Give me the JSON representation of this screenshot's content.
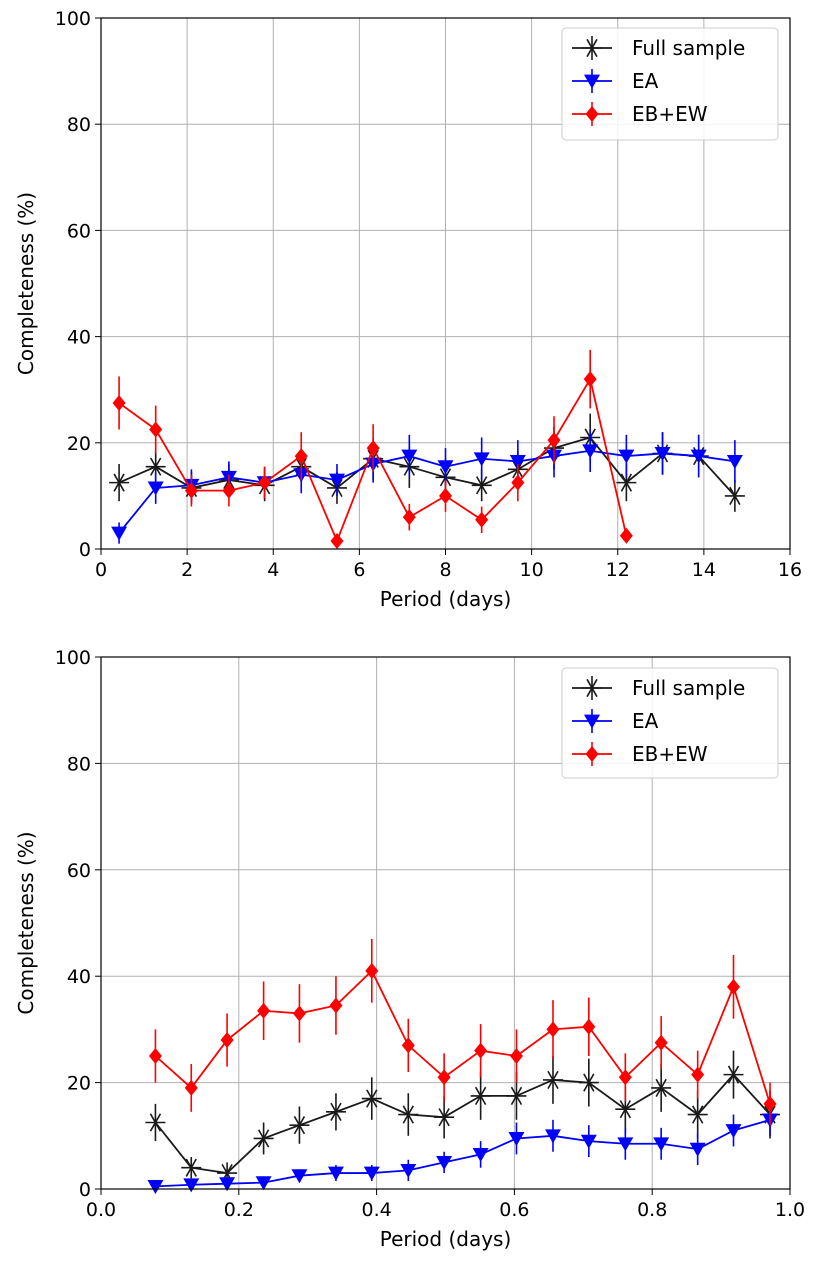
{
  "chart_data": [
    {
      "type": "line",
      "title": "",
      "xlabel": "Period (days)",
      "ylabel": "Completeness (%)",
      "xlim": [
        0,
        16
      ],
      "ylim": [
        0,
        100
      ],
      "xticks": [
        0,
        2,
        4,
        6,
        8,
        10,
        12,
        14,
        16
      ],
      "xtick_labels": [
        "0",
        "2",
        "4",
        "6",
        "8",
        "10",
        "12",
        "14",
        "16"
      ],
      "yticks": [
        0,
        20,
        40,
        60,
        80,
        100
      ],
      "ytick_labels": [
        "0",
        "20",
        "40",
        "60",
        "80",
        "100"
      ],
      "grid": true,
      "legend_position": "top-right",
      "series": [
        {
          "name": "Full sample",
          "color": "#1a1a1a",
          "marker": "asterisk",
          "x": [
            0.42,
            1.27,
            2.1,
            2.97,
            3.8,
            4.65,
            5.48,
            6.32,
            7.16,
            8.0,
            8.84,
            9.68,
            10.52,
            11.36,
            12.2,
            13.04,
            13.88,
            14.72
          ],
          "y": [
            12.5,
            15.5,
            11.5,
            13,
            12,
            15.5,
            11.5,
            17,
            15.5,
            13.5,
            12,
            15,
            19,
            21,
            12.5,
            18,
            17.5,
            10
          ],
          "err": [
            3.5,
            3,
            3,
            3,
            3,
            3,
            3,
            4,
            4,
            3.5,
            3,
            3.5,
            4,
            4.5,
            3.5,
            4,
            4,
            3
          ]
        },
        {
          "name": "EA",
          "color": "#0000ff",
          "marker": "triangle-down",
          "x": [
            0.42,
            1.27,
            2.1,
            2.97,
            3.8,
            4.65,
            5.48,
            6.32,
            7.16,
            8.0,
            8.84,
            9.68,
            10.52,
            11.36,
            12.2,
            13.04,
            13.88,
            14.72
          ],
          "y": [
            3,
            11.5,
            12,
            13.5,
            12.5,
            14,
            13,
            16,
            17.5,
            15.5,
            17,
            16.5,
            17.5,
            18.5,
            17.5,
            18,
            17.5,
            16.5
          ],
          "err": [
            2,
            3,
            3,
            3,
            3,
            3.5,
            3,
            3.5,
            4,
            3.5,
            4,
            4,
            4,
            4,
            4,
            4,
            4,
            4
          ]
        },
        {
          "name": "EB+EW",
          "color": "#ff0000",
          "marker": "diamond",
          "x": [
            0.42,
            1.27,
            2.1,
            2.97,
            3.8,
            4.65,
            5.48,
            6.32,
            7.16,
            8.0,
            8.84,
            9.68,
            10.52,
            11.36,
            12.2
          ],
          "y": [
            27.5,
            22.5,
            11,
            11,
            12.5,
            17.5,
            1.5,
            19,
            6,
            10,
            5.5,
            12.5,
            20.5,
            32,
            2.5
          ],
          "err": [
            5,
            4.5,
            3,
            3,
            3,
            4.5,
            1,
            4.5,
            2.5,
            3,
            2.5,
            3.5,
            4.5,
            5.5,
            1
          ]
        }
      ]
    },
    {
      "type": "line",
      "title": "",
      "xlabel": "Period (days)",
      "ylabel": "Completeness (%)",
      "xlim": [
        0,
        1
      ],
      "ylim": [
        0,
        100
      ],
      "xticks": [
        0,
        0.2,
        0.4,
        0.6,
        0.8,
        1.0
      ],
      "xtick_labels": [
        "0.0",
        "0.2",
        "0.4",
        "0.6",
        "0.8",
        "1.0"
      ],
      "yticks": [
        0,
        20,
        40,
        60,
        80,
        100
      ],
      "ytick_labels": [
        "0",
        "20",
        "40",
        "60",
        "80",
        "100"
      ],
      "grid": true,
      "legend_position": "top-right",
      "series": [
        {
          "name": "Full sample",
          "color": "#1a1a1a",
          "marker": "asterisk",
          "x": [
            0.079,
            0.131,
            0.183,
            0.236,
            0.288,
            0.341,
            0.393,
            0.446,
            0.498,
            0.551,
            0.603,
            0.656,
            0.708,
            0.761,
            0.813,
            0.866,
            0.918,
            0.971
          ],
          "y": [
            12.5,
            4,
            3,
            9.5,
            12,
            14.5,
            17,
            14,
            13.5,
            17.5,
            17.5,
            20.5,
            20,
            15,
            19,
            14,
            21.5,
            14
          ],
          "err": [
            3.5,
            2,
            2,
            3,
            3.5,
            3.5,
            4,
            4,
            4,
            4.5,
            4.5,
            4.5,
            4.5,
            4.5,
            4.5,
            4.5,
            4.5,
            4.5
          ]
        },
        {
          "name": "EA",
          "color": "#0000ff",
          "marker": "triangle-down",
          "x": [
            0.079,
            0.131,
            0.183,
            0.236,
            0.288,
            0.341,
            0.393,
            0.446,
            0.498,
            0.551,
            0.603,
            0.656,
            0.708,
            0.761,
            0.813,
            0.866,
            0.918,
            0.971
          ],
          "y": [
            0.5,
            0.8,
            1,
            1.2,
            2.5,
            3,
            3,
            3.5,
            5,
            6.5,
            9.5,
            10,
            9,
            8.5,
            8.5,
            7.5,
            11,
            13
          ],
          "err": [
            0.5,
            0.5,
            0.8,
            1,
            1.2,
            1.5,
            1.5,
            2,
            2,
            2.5,
            3,
            3,
            3,
            3,
            3,
            3,
            3,
            3
          ]
        },
        {
          "name": "EB+EW",
          "color": "#ff0000",
          "marker": "diamond",
          "x": [
            0.079,
            0.131,
            0.183,
            0.236,
            0.288,
            0.341,
            0.393,
            0.446,
            0.498,
            0.551,
            0.603,
            0.656,
            0.708,
            0.761,
            0.813,
            0.866,
            0.918,
            0.971
          ],
          "y": [
            25,
            19,
            28,
            33.5,
            33,
            34.5,
            41,
            27,
            21,
            26,
            25,
            30,
            30.5,
            21,
            27.5,
            21.5,
            38,
            16
          ],
          "err": [
            5,
            4.5,
            5,
            5.5,
            5.5,
            5.5,
            6,
            5,
            4.5,
            5,
            5,
            5.5,
            5.5,
            4.5,
            5,
            4.5,
            6,
            4
          ]
        }
      ]
    }
  ]
}
